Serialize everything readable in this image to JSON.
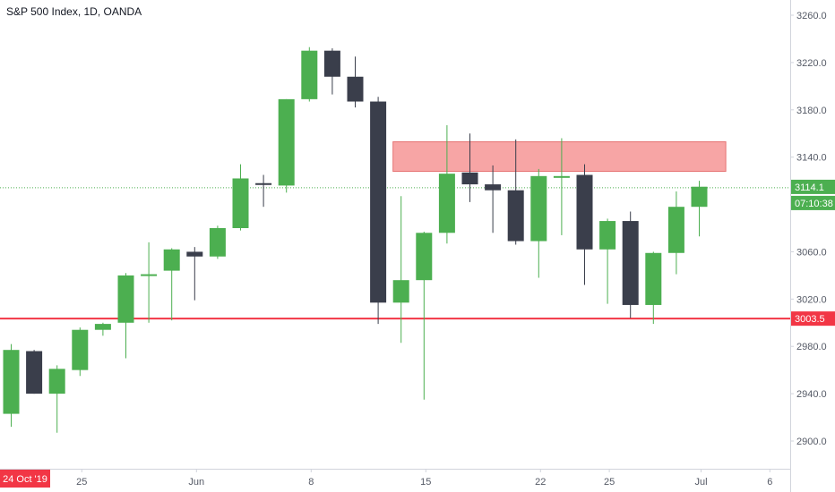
{
  "header": {
    "title": "S&P 500 Index, 1D, OANDA"
  },
  "colors": {
    "up": "#4caf50",
    "down": "#3a3e4b",
    "resistance_zone": "#f7a5a5",
    "resistance_border": "#e57373",
    "support_line": "#f23645",
    "last_price_line": "#4caf50",
    "grid_axis": "#d1d4dc"
  },
  "chart_data": {
    "type": "candlestick",
    "title": "S&P 500 Index, 1D, OANDA",
    "ylim": [
      2870,
      3275
    ],
    "y_ticks": [
      2900,
      2940,
      2980,
      3020,
      3060,
      3100,
      3140,
      3180,
      3220,
      3260
    ],
    "y_tick_labels": [
      "2900.0",
      "2940.0",
      "2980.0",
      "3020.0",
      "3060.0",
      "3100.0",
      "3140.0",
      "3180.0",
      "3220.0",
      "3260.0"
    ],
    "x_tick_labels": [
      {
        "index": 3,
        "label": "25"
      },
      {
        "index": 8,
        "label": "Jun"
      },
      {
        "index": 13,
        "label": "8"
      },
      {
        "index": 18,
        "label": "15"
      },
      {
        "index": 23,
        "label": "22"
      },
      {
        "index": 26,
        "label": "25"
      },
      {
        "index": 30,
        "label": "Jul"
      },
      {
        "index": 33,
        "label": "6"
      }
    ],
    "x_cursor_label": {
      "index": 0,
      "label": "24 Oct '19"
    },
    "candles": [
      {
        "o": 2923,
        "h": 2982,
        "l": 2912,
        "c": 2977
      },
      {
        "o": 2976,
        "h": 2977,
        "l": 2940,
        "c": 2940
      },
      {
        "o": 2940,
        "h": 2964,
        "l": 2907,
        "c": 2961
      },
      {
        "o": 2960,
        "h": 2996,
        "l": 2955,
        "c": 2994
      },
      {
        "o": 2994,
        "h": 3000,
        "l": 2989,
        "c": 2999
      },
      {
        "o": 3000,
        "h": 3042,
        "l": 2970,
        "c": 3040
      },
      {
        "o": 3040,
        "h": 3068,
        "l": 3000,
        "c": 3041
      },
      {
        "o": 3044,
        "h": 3063,
        "l": 3002,
        "c": 3062
      },
      {
        "o": 3060,
        "h": 3064,
        "l": 3019,
        "c": 3056
      },
      {
        "o": 3056,
        "h": 3082,
        "l": 3054,
        "c": 3080
      },
      {
        "o": 3080,
        "h": 3134,
        "l": 3078,
        "c": 3122
      },
      {
        "o": 3118,
        "h": 3125,
        "l": 3098,
        "c": 3117
      },
      {
        "o": 3116,
        "h": 3189,
        "l": 3110,
        "c": 3189
      },
      {
        "o": 3189,
        "h": 3233,
        "l": 3187,
        "c": 3230
      },
      {
        "o": 3230,
        "h": 3232,
        "l": 3193,
        "c": 3208
      },
      {
        "o": 3208,
        "h": 3225,
        "l": 3182,
        "c": 3187
      },
      {
        "o": 3187,
        "h": 3191,
        "l": 2999,
        "c": 3017
      },
      {
        "o": 3017,
        "h": 3107,
        "l": 2983,
        "c": 3036
      },
      {
        "o": 3036,
        "h": 3077,
        "l": 2935,
        "c": 3076
      },
      {
        "o": 3076,
        "h": 3167,
        "l": 3067,
        "c": 3126
      },
      {
        "o": 3127,
        "h": 3160,
        "l": 3102,
        "c": 3117
      },
      {
        "o": 3117,
        "h": 3133,
        "l": 3076,
        "c": 3112
      },
      {
        "o": 3112,
        "h": 3155,
        "l": 3066,
        "c": 3069
      },
      {
        "o": 3069,
        "h": 3130,
        "l": 3038,
        "c": 3124
      },
      {
        "o": 3124,
        "h": 3156,
        "l": 3074,
        "c": 3124
      },
      {
        "o": 3125,
        "h": 3134,
        "l": 3032,
        "c": 3062
      },
      {
        "o": 3062,
        "h": 3088,
        "l": 3016,
        "c": 3086
      },
      {
        "o": 3086,
        "h": 3094,
        "l": 3004,
        "c": 3015
      },
      {
        "o": 3015,
        "h": 3060,
        "l": 2999,
        "c": 3059
      },
      {
        "o": 3059,
        "h": 3111,
        "l": 3041,
        "c": 3098
      },
      {
        "o": 3098,
        "h": 3120,
        "l": 3073,
        "c": 3115
      }
    ],
    "resistance_zone": {
      "from": 3128,
      "to": 3153,
      "start_index": 17,
      "end_index": 31
    },
    "support_line": {
      "value": 3003.5,
      "label": "3003.5"
    },
    "last_price": {
      "value": 3114.1,
      "label": "3114.1",
      "countdown": "07:10:38"
    }
  }
}
